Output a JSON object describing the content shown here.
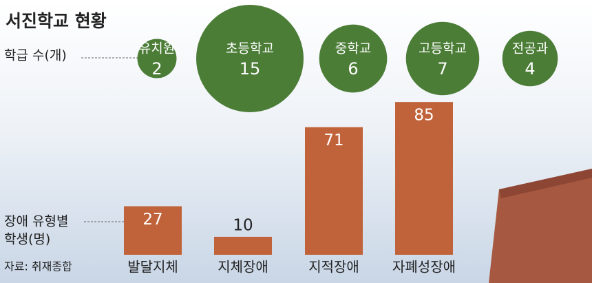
{
  "title": "서진학교 현황",
  "source": "자료: 취재종합",
  "chart_data": [
    {
      "type": "bubble",
      "label": "학급 수(개)",
      "categories": [
        "유치원",
        "초등학교",
        "중학교",
        "고등학교",
        "전공과"
      ],
      "values": [
        2,
        15,
        6,
        7,
        4
      ],
      "color": "#4b7d37"
    },
    {
      "type": "bar",
      "label": [
        "장애 유형별",
        "학생(명)"
      ],
      "categories": [
        "발달지체",
        "지체장애",
        "지적장애",
        "자폐성장애"
      ],
      "values": [
        27,
        10,
        71,
        85
      ],
      "color": "#c1633a"
    }
  ]
}
